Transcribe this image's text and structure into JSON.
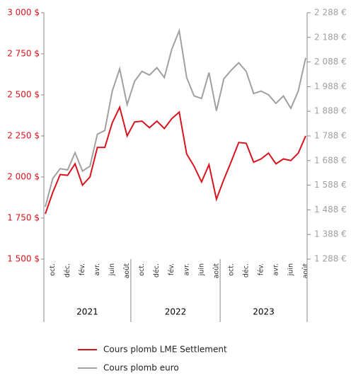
{
  "chart_data": {
    "type": "line",
    "categories": [
      null,
      "oct.",
      null,
      "déc.",
      null,
      "fév.",
      null,
      "avr.",
      null,
      "juin",
      null,
      "août",
      null,
      "oct.",
      null,
      "déc.",
      null,
      "fév.",
      null,
      "avr.",
      null,
      "juin",
      null,
      "août",
      null,
      "oct.",
      null,
      "déc.",
      null,
      "fév.",
      null,
      "avr.",
      null,
      "juin",
      null,
      "août"
    ],
    "groups": [
      "2021",
      "2022",
      "2023"
    ],
    "series": [
      {
        "name": "Cours plomb LME Settlement",
        "color": "#d7141e",
        "values": [
          1775,
          1905,
          2015,
          2010,
          2080,
          1950,
          2000,
          2180,
          2180,
          2330,
          2425,
          2250,
          2335,
          2340,
          2300,
          2340,
          2295,
          2355,
          2395,
          2140,
          2065,
          1970,
          2075,
          1865,
          1985,
          2095,
          2210,
          2205,
          2090,
          2110,
          2145,
          2080,
          2110,
          2100,
          2145,
          2250
        ]
      },
      {
        "name": "Cours plomb euro",
        "color": "#a0a0a0",
        "axis": "y2",
        "values": [
          1500,
          1615,
          1655,
          1650,
          1720,
          1645,
          1665,
          1795,
          1810,
          1970,
          2060,
          1915,
          2010,
          2050,
          2035,
          2065,
          2025,
          2140,
          2215,
          2025,
          1950,
          1940,
          2045,
          1890,
          2020,
          2055,
          2085,
          2050,
          1960,
          1970,
          1955,
          1920,
          1950,
          1900,
          1970,
          2105
        ]
      }
    ],
    "ylim": [
      1500,
      3000
    ],
    "yticks": [
      {
        "value": 1500,
        "label": "1 500 $"
      },
      {
        "value": 1750,
        "label": "1 750 $"
      },
      {
        "value": 2000,
        "label": "2 000 $"
      },
      {
        "value": 2250,
        "label": "2 250 $"
      },
      {
        "value": 2500,
        "label": "2 500 $"
      },
      {
        "value": 2750,
        "label": "2 750 $"
      },
      {
        "value": 3000,
        "label": "3 000 $"
      }
    ],
    "y2lim": [
      1288,
      2288
    ],
    "y2ticks": [
      {
        "value": 1288,
        "label": "1 288 €"
      },
      {
        "value": 1388,
        "label": "1 388 €"
      },
      {
        "value": 1488,
        "label": "1 488 €"
      },
      {
        "value": 1588,
        "label": "1 588 €"
      },
      {
        "value": 1688,
        "label": "1 688 €"
      },
      {
        "value": 1788,
        "label": "1 788 €"
      },
      {
        "value": 1888,
        "label": "1 888 €"
      },
      {
        "value": 1988,
        "label": "1 988 €"
      },
      {
        "value": 2088,
        "label": "2 088 €"
      },
      {
        "value": 2188,
        "label": "2 188 €"
      },
      {
        "value": 2288,
        "label": "2 288 €"
      }
    ],
    "ytick_color": "#d7141e",
    "y2tick_color": "#a0a0a0",
    "legend": "bottom"
  }
}
